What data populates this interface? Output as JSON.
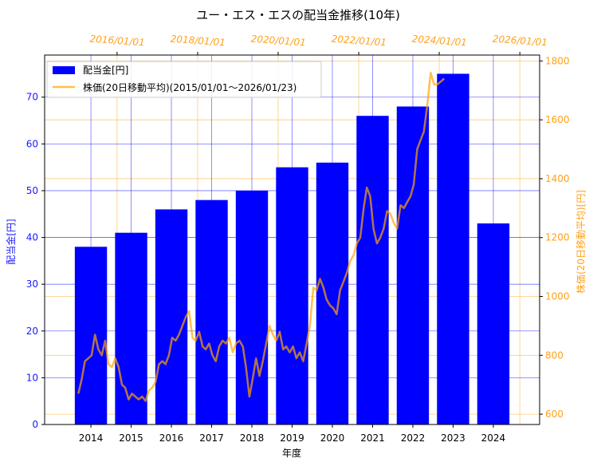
{
  "chart_data": {
    "type": "bar",
    "title": "ユー・エス・エスの配当金推移(10年)",
    "xlabel": "年度",
    "ylabel": "配当金[円]",
    "y2label": "株価(20日移動平均)[円]",
    "categories": [
      "2014",
      "2015",
      "2016",
      "2017",
      "2018",
      "2019",
      "2020",
      "2021",
      "2022",
      "2023",
      "2024"
    ],
    "series": [
      {
        "name": "配当金[円]",
        "axis": "left",
        "values": [
          38,
          41,
          46,
          48,
          50,
          55,
          56,
          66,
          68,
          75,
          43
        ]
      }
    ],
    "ylim": [
      0,
      79
    ],
    "yticks": [
      0,
      10,
      20,
      30,
      40,
      50,
      60,
      70
    ],
    "y2lim": [
      565,
      1820
    ],
    "y2ticks": [
      600,
      800,
      1000,
      1200,
      1400,
      1600,
      1800
    ],
    "top_axis": {
      "labels": [
        "2016/01/01",
        "2018/01/01",
        "2020/01/01",
        "2022/01/01",
        "2024/01/01",
        "2026/01/01"
      ]
    },
    "line_series": {
      "name": "株価(20日移動平均)(2015/01/01～2026/01/23)",
      "axis": "right",
      "x_start": "2015/01/01",
      "x_end": "2026/01/23",
      "points": [
        [
          "2015/01/15",
          670
        ],
        [
          "2015/02/15",
          720
        ],
        [
          "2015/03/15",
          780
        ],
        [
          "2015/04/15",
          790
        ],
        [
          "2015/05/15",
          800
        ],
        [
          "2015/06/15",
          870
        ],
        [
          "2015/07/15",
          820
        ],
        [
          "2015/08/15",
          800
        ],
        [
          "2015/09/15",
          850
        ],
        [
          "2015/10/15",
          770
        ],
        [
          "2015/11/15",
          760
        ],
        [
          "2015/12/15",
          790
        ],
        [
          "2016/01/15",
          760
        ],
        [
          "2016/02/15",
          700
        ],
        [
          "2016/03/15",
          690
        ],
        [
          "2016/04/15",
          650
        ],
        [
          "2016/05/15",
          670
        ],
        [
          "2016/06/15",
          660
        ],
        [
          "2016/07/15",
          650
        ],
        [
          "2016/08/15",
          660
        ],
        [
          "2016/09/15",
          645
        ],
        [
          "2016/10/15",
          680
        ],
        [
          "2016/11/15",
          690
        ],
        [
          "2016/12/15",
          710
        ],
        [
          "2017/01/15",
          770
        ],
        [
          "2017/02/15",
          780
        ],
        [
          "2017/03/15",
          770
        ],
        [
          "2017/04/15",
          800
        ],
        [
          "2017/05/15",
          860
        ],
        [
          "2017/06/15",
          850
        ],
        [
          "2017/07/15",
          870
        ],
        [
          "2017/08/15",
          900
        ],
        [
          "2017/09/15",
          930
        ],
        [
          "2017/10/15",
          950
        ],
        [
          "2017/11/15",
          860
        ],
        [
          "2017/12/15",
          850
        ],
        [
          "2018/01/15",
          880
        ],
        [
          "2018/02/15",
          830
        ],
        [
          "2018/03/15",
          820
        ],
        [
          "2018/04/15",
          840
        ],
        [
          "2018/05/15",
          800
        ],
        [
          "2018/06/15",
          780
        ],
        [
          "2018/07/15",
          830
        ],
        [
          "2018/08/15",
          850
        ],
        [
          "2018/09/15",
          840
        ],
        [
          "2018/10/15",
          860
        ],
        [
          "2018/11/15",
          810
        ],
        [
          "2018/12/15",
          840
        ],
        [
          "2019/01/15",
          850
        ],
        [
          "2019/02/15",
          830
        ],
        [
          "2019/03/15",
          760
        ],
        [
          "2019/04/15",
          660
        ],
        [
          "2019/05/15",
          720
        ],
        [
          "2019/06/15",
          790
        ],
        [
          "2019/07/15",
          730
        ],
        [
          "2019/08/15",
          780
        ],
        [
          "2019/09/15",
          840
        ],
        [
          "2019/10/15",
          900
        ],
        [
          "2019/11/15",
          870
        ],
        [
          "2019/12/15",
          850
        ],
        [
          "2020/01/15",
          880
        ],
        [
          "2020/02/15",
          820
        ],
        [
          "2020/03/15",
          830
        ],
        [
          "2020/04/15",
          810
        ],
        [
          "2020/05/15",
          830
        ],
        [
          "2020/06/15",
          790
        ],
        [
          "2020/07/15",
          810
        ],
        [
          "2020/08/15",
          780
        ],
        [
          "2020/09/15",
          840
        ],
        [
          "2020/10/15",
          900
        ],
        [
          "2020/11/15",
          1030
        ],
        [
          "2020/12/15",
          1020
        ],
        [
          "2021/01/15",
          1060
        ],
        [
          "2021/02/15",
          1030
        ],
        [
          "2021/03/15",
          990
        ],
        [
          "2021/04/15",
          970
        ],
        [
          "2021/05/15",
          960
        ],
        [
          "2021/06/15",
          940
        ],
        [
          "2021/07/15",
          1020
        ],
        [
          "2021/08/15",
          1050
        ],
        [
          "2021/09/15",
          1080
        ],
        [
          "2021/10/15",
          1120
        ],
        [
          "2021/11/15",
          1140
        ],
        [
          "2021/12/15",
          1180
        ],
        [
          "2022/01/15",
          1200
        ],
        [
          "2022/02/15",
          1300
        ],
        [
          "2022/03/15",
          1370
        ],
        [
          "2022/04/15",
          1340
        ],
        [
          "2022/05/15",
          1230
        ],
        [
          "2022/06/15",
          1180
        ],
        [
          "2022/07/15",
          1200
        ],
        [
          "2022/08/15",
          1230
        ],
        [
          "2022/09/15",
          1290
        ],
        [
          "2022/10/15",
          1280
        ],
        [
          "2022/11/15",
          1250
        ],
        [
          "2022/12/15",
          1230
        ],
        [
          "2023/01/15",
          1310
        ],
        [
          "2023/02/15",
          1300
        ],
        [
          "2023/03/15",
          1320
        ],
        [
          "2023/04/15",
          1340
        ],
        [
          "2023/05/15",
          1380
        ],
        [
          "2023/06/15",
          1500
        ],
        [
          "2023/07/15",
          1530
        ],
        [
          "2023/08/15",
          1560
        ],
        [
          "2023/09/15",
          1650
        ],
        [
          "2023/10/15",
          1760
        ],
        [
          "2023/11/15",
          1720
        ],
        [
          "2023/12/15",
          1720
        ],
        [
          "2024/01/15",
          1730
        ],
        [
          "2024/02/15",
          1740
        ]
      ]
    },
    "grid": true,
    "legend": "top-left"
  },
  "colors": {
    "bar": "#0000ff",
    "line": "#ffa500",
    "left_axis_text": "#1a1aff",
    "right_axis_text": "#ffa11a",
    "grid_left": "#0000ff",
    "grid_right": "#ffcc77"
  }
}
